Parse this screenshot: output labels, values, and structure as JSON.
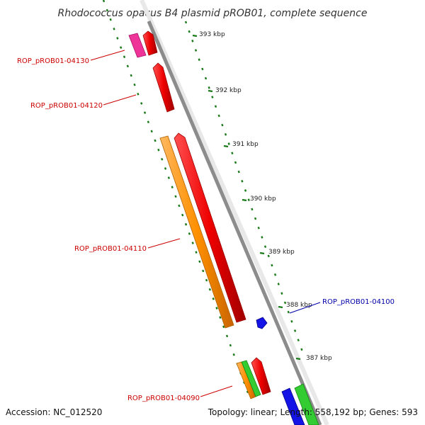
{
  "title": "Rhodococcus opacus B4 plasmid pROB01, complete sequence",
  "accession": "Accession: NC_012520",
  "summary": "Topology: linear; Length: 558,192 bp; Genes: 593",
  "scale_labels": [
    "393 kbp",
    "392 kbp",
    "391 kbp",
    "390 kbp",
    "389 kbp",
    "388 kbp",
    "387 kbp"
  ],
  "gene_labels": [
    {
      "text": "ROP_pROB01-04130",
      "color": "#cc0000"
    },
    {
      "text": "ROP_pROB01-04120",
      "color": "#cc0000"
    },
    {
      "text": "ROP_pROB01-04110",
      "color": "#cc0000"
    },
    {
      "text": "ROP_pROB01-04100",
      "color": "#0000aa"
    },
    {
      "text": "ROP_pROB01-04090",
      "color": "#cc0000"
    }
  ],
  "colors": {
    "backbone": "#8c8c8c",
    "tick": "#1a7a1a",
    "red": "#ee0000",
    "orange": "#ff9000",
    "magenta": "#ee3399",
    "green": "#33cc33",
    "blue": "#1414e6"
  }
}
